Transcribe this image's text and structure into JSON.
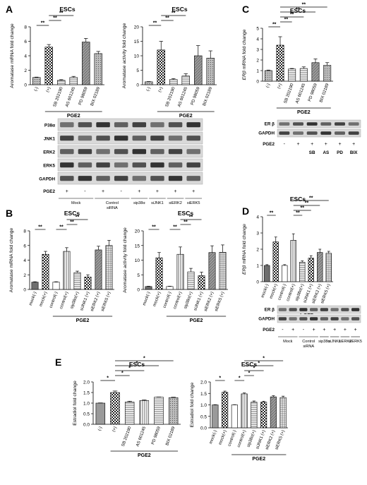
{
  "figure": {
    "panels": [
      {
        "letter": "A"
      },
      {
        "letter": "B"
      },
      {
        "letter": "C"
      },
      {
        "letter": "D"
      },
      {
        "letter": "E"
      }
    ]
  },
  "chart_data": [
    {
      "id": "A1",
      "panel": "A",
      "type": "bar",
      "title": "ESCs",
      "ylabel": "Aromatase mRNA fold change",
      "ylabel_italic_prefix": "",
      "xgroup_label": "PGE2",
      "ylim": [
        0,
        8
      ],
      "yticks": [
        0,
        2,
        4,
        6,
        8
      ],
      "categories": [
        "(-)",
        "(+)",
        "SB 202190",
        "AS 601245",
        "PD 98059",
        "BIX 02189"
      ],
      "values": [
        1.0,
        5.2,
        0.6,
        1.0,
        5.9,
        4.3
      ],
      "errors": [
        0.05,
        0.35,
        0.1,
        0.15,
        0.5,
        0.3
      ],
      "patterns": [
        "dots",
        "check",
        "hlines",
        "hlines",
        "diag",
        "dots"
      ],
      "xlabel_group_range": [
        1,
        5
      ],
      "brackets": [
        {
          "from": 0,
          "to": 1,
          "label": "**",
          "level": 0
        },
        {
          "from": 1,
          "to": 2,
          "label": "**",
          "level": 1
        },
        {
          "from": 1,
          "to": 3,
          "label": "**",
          "level": 2
        }
      ]
    },
    {
      "id": "A2",
      "panel": "A",
      "type": "bar",
      "title": "ESCs",
      "ylabel": "Aromatase activity fold change",
      "xgroup_label": "PGE2",
      "ylim": [
        0,
        20
      ],
      "yticks": [
        0,
        5,
        10,
        15,
        20
      ],
      "categories": [
        "(-)",
        "(+)",
        "SB 202190",
        "AS 601245",
        "PD 98059",
        "BIX 02189"
      ],
      "values": [
        1.0,
        12.0,
        1.8,
        3.0,
        10.0,
        9.2
      ],
      "errors": [
        0.1,
        3.0,
        0.3,
        0.8,
        3.5,
        2.5
      ],
      "patterns": [
        "dots",
        "check",
        "hlines",
        "hlines",
        "diag",
        "dots"
      ],
      "xlabel_group_range": [
        1,
        5
      ],
      "brackets": [
        {
          "from": 0,
          "to": 1,
          "label": "**",
          "level": 0
        },
        {
          "from": 1,
          "to": 2,
          "label": "**",
          "level": 1
        },
        {
          "from": 1,
          "to": 3,
          "label": "**",
          "level": 2
        }
      ]
    },
    {
      "id": "C1",
      "panel": "C",
      "type": "bar",
      "title": "ESCs",
      "ylabel": "ERβ mRNA fold change",
      "ylabel_italic_prefix": "ERβ",
      "xgroup_label": "PGE2",
      "ylim": [
        0,
        5
      ],
      "yticks": [
        0,
        1,
        2,
        3,
        4,
        5
      ],
      "categories": [
        "(-)",
        "(+)",
        "SB 202190",
        "AS 601245",
        "PD 98059",
        "BIX 02189"
      ],
      "values": [
        1.0,
        3.4,
        1.15,
        1.2,
        1.75,
        1.5
      ],
      "errors": [
        0.05,
        0.8,
        0.05,
        0.15,
        0.35,
        0.25
      ],
      "patterns": [
        "dots",
        "check",
        "hlines",
        "hlines",
        "diag",
        "dots"
      ],
      "xlabel_group_range": [
        1,
        5
      ],
      "brackets": [
        {
          "from": 0,
          "to": 1,
          "label": "**",
          "level": 0
        },
        {
          "from": 1,
          "to": 2,
          "label": "**",
          "level": 1
        },
        {
          "from": 1,
          "to": 3,
          "label": "**",
          "level": 2
        },
        {
          "from": 1,
          "to": 4,
          "label": "**",
          "level": 3
        },
        {
          "from": 1,
          "to": 5,
          "label": "**",
          "level": 4
        }
      ]
    },
    {
      "id": "B1",
      "panel": "B",
      "type": "bar",
      "title": "ESCs",
      "ylabel": "Aromatase mRNA fold change",
      "xgroup_label": "PGE2",
      "ylim": [
        0,
        8
      ],
      "yticks": [
        0,
        2,
        4,
        6,
        8
      ],
      "categories": [
        "mock(-)",
        "mock(+)",
        "control(-)",
        "control(+)",
        "sip38α(+)",
        "siJNK1 (+)",
        "siERK2 (+)",
        "siERK5 (+)"
      ],
      "values": [
        1.0,
        4.8,
        1.0,
        5.2,
        2.3,
        1.7,
        5.4,
        6.0
      ],
      "errors": [
        0.05,
        0.4,
        0.05,
        0.5,
        0.2,
        0.3,
        0.5,
        0.7
      ],
      "patterns": [
        "dark",
        "check",
        "white",
        "vlines",
        "hlines",
        "check",
        "diag",
        "grid"
      ],
      "xlabel_group_range": [
        2,
        7
      ],
      "brackets": [
        {
          "from": 0,
          "to": 1,
          "label": "**",
          "level": 0
        },
        {
          "from": 2,
          "to": 3,
          "label": "**",
          "level": 0
        },
        {
          "from": 3,
          "to": 4,
          "label": "**",
          "level": 1
        },
        {
          "from": 3,
          "to": 5,
          "label": "**",
          "level": 2
        }
      ]
    },
    {
      "id": "B2",
      "panel": "B",
      "type": "bar",
      "title": "ESCs",
      "ylabel": "Aromatase activity fold change",
      "xgroup_label": "PGE2",
      "ylim": [
        0,
        20
      ],
      "yticks": [
        0,
        5,
        10,
        15,
        20
      ],
      "categories": [
        "mock(-)",
        "mock(+)",
        "control(-)",
        "control(+)",
        "sip38α(+)",
        "siJNK1 (+)",
        "siERK2 (+)",
        "siERK5 (+)"
      ],
      "values": [
        1.0,
        10.8,
        1.0,
        12.0,
        6.0,
        4.7,
        12.6,
        12.7
      ],
      "errors": [
        0.1,
        1.8,
        0.1,
        2.5,
        1.2,
        1.2,
        2.3,
        2.5
      ],
      "patterns": [
        "dark",
        "check",
        "white",
        "vlines",
        "hlines",
        "check",
        "diag",
        "grid"
      ],
      "xlabel_group_range": [
        2,
        7
      ],
      "brackets": [
        {
          "from": 0,
          "to": 1,
          "label": "**",
          "level": 0
        },
        {
          "from": 2,
          "to": 3,
          "label": "**",
          "level": 0
        },
        {
          "from": 3,
          "to": 4,
          "label": "**",
          "level": 1
        },
        {
          "from": 3,
          "to": 5,
          "label": "**",
          "level": 2
        }
      ]
    },
    {
      "id": "D1",
      "panel": "D",
      "type": "bar",
      "title": "ESCs",
      "ylabel": "ERβ mRNA fold change",
      "ylabel_italic_prefix": "ERβ",
      "xgroup_label": "PGE2",
      "ylim": [
        0,
        4
      ],
      "yticks": [
        0,
        1,
        2,
        3,
        4
      ],
      "categories": [
        "mock(-)",
        "mock(+)",
        "control(-)",
        "control(+)",
        "sip38α(+)",
        "siJNK1 (+)",
        "siERK2 (+)",
        "siERK5 (+)"
      ],
      "values": [
        1.0,
        2.45,
        1.0,
        2.55,
        1.2,
        1.45,
        1.8,
        1.75
      ],
      "errors": [
        0.05,
        0.3,
        0.05,
        0.4,
        0.08,
        0.15,
        0.2,
        0.12
      ],
      "patterns": [
        "dark",
        "check",
        "white",
        "vlines",
        "hlines",
        "check",
        "diag",
        "grid"
      ],
      "xlabel_group_range": [
        2,
        7
      ],
      "brackets": [
        {
          "from": 0,
          "to": 1,
          "label": "**",
          "level": 0
        },
        {
          "from": 3,
          "to": 4,
          "label": "**",
          "level": 0
        },
        {
          "from": 3,
          "to": 5,
          "label": "**",
          "level": 1
        },
        {
          "from": 3,
          "to": 6,
          "label": "**",
          "level": 2
        },
        {
          "from": 3,
          "to": 7,
          "label": "**",
          "level": 3
        }
      ]
    },
    {
      "id": "E1",
      "panel": "E",
      "type": "bar",
      "title": "ESCs",
      "ylabel": "Estradiol fold change",
      "xgroup_label": "PGE2",
      "ylim": [
        0,
        2.0
      ],
      "yticks": [
        0.0,
        0.5,
        1.0,
        1.5,
        2.0
      ],
      "categories": [
        "(-)",
        "(+)",
        "SB 202190",
        "AS 601245",
        "PD 98059",
        "BIX 02189"
      ],
      "values": [
        1.0,
        1.5,
        1.05,
        1.12,
        1.28,
        1.26
      ],
      "errors": [
        0.01,
        0.07,
        0.04,
        0.03,
        0.01,
        0.02
      ],
      "patterns": [
        "gray",
        "check",
        "hlines",
        "vlines",
        "hlines",
        "dots"
      ],
      "xlabel_group_range": [
        1,
        5
      ],
      "brackets": [
        {
          "from": 0,
          "to": 1,
          "label": "*",
          "level": 0
        },
        {
          "from": 1,
          "to": 2,
          "label": "*",
          "level": 1
        },
        {
          "from": 1,
          "to": 3,
          "label": "*",
          "level": 2
        },
        {
          "from": 1,
          "to": 4,
          "label": "*",
          "level": 3
        },
        {
          "from": 1,
          "to": 5,
          "label": "*",
          "level": 4
        }
      ]
    },
    {
      "id": "E2",
      "panel": "E",
      "type": "bar",
      "title": "ESCs",
      "ylabel": "Estradiol fold change",
      "xgroup_label": "PGE2",
      "ylim": [
        0,
        2.0
      ],
      "yticks": [
        0.0,
        0.5,
        1.0,
        1.5,
        2.0
      ],
      "categories": [
        "mock(-)",
        "mock(+)",
        "control(-)",
        "control(+)",
        "sip38α(+)",
        "siJNK1 (+)",
        "siERK2 (+)",
        "siERK5 (+)"
      ],
      "values": [
        1.0,
        1.55,
        1.0,
        1.48,
        1.12,
        1.12,
        1.35,
        1.32
      ],
      "errors": [
        0.01,
        0.05,
        0.01,
        0.04,
        0.05,
        0.04,
        0.05,
        0.06
      ],
      "patterns": [
        "gray",
        "check",
        "white",
        "vlines",
        "hlines",
        "check",
        "diag",
        "grid"
      ],
      "xlabel_group_range": [
        2,
        7
      ],
      "brackets": [
        {
          "from": 0,
          "to": 1,
          "label": "*",
          "level": 0
        },
        {
          "from": 2,
          "to": 3,
          "label": "*",
          "level": 0
        },
        {
          "from": 3,
          "to": 4,
          "label": "*",
          "level": 1
        },
        {
          "from": 3,
          "to": 5,
          "label": "*",
          "level": 2
        },
        {
          "from": 3,
          "to": 6,
          "label": "*",
          "level": 3
        },
        {
          "from": 3,
          "to": 7,
          "label": "*",
          "level": 4
        }
      ]
    }
  ],
  "blots": [
    {
      "id": "A-blot",
      "panel": "A",
      "rows": [
        "P38α",
        "JNK1",
        "ERK2",
        "ERK5",
        "GAPDH"
      ],
      "pge2_label": "PGE2",
      "pge2_signs": [
        "+",
        "-",
        "+",
        "-",
        "+",
        "+",
        "+",
        "+"
      ],
      "groups": [
        {
          "label": "Mock",
          "lanes": [
            0,
            1
          ]
        },
        {
          "label": "Control siRNA",
          "lanes": [
            2,
            3
          ]
        },
        {
          "label": "sip38α",
          "lanes": [
            4,
            4
          ]
        },
        {
          "label": "siJNK1",
          "lanes": [
            5,
            5
          ]
        },
        {
          "label": "siERK2",
          "lanes": [
            6,
            6
          ]
        },
        {
          "label": "siERK5",
          "lanes": [
            7,
            7
          ]
        }
      ]
    },
    {
      "id": "C-blot",
      "panel": "C",
      "rows": [
        "ER β",
        "GAPDH"
      ],
      "pge2_label": "PGE2",
      "pge2_signs": [
        "-",
        "+",
        "+",
        "+",
        "+",
        "+"
      ],
      "lane_labels": [
        "",
        "",
        "SB",
        "AS",
        "PD",
        "BIX"
      ]
    },
    {
      "id": "D-blot",
      "panel": "D",
      "rows": [
        "ER β",
        "GAPDH"
      ],
      "pge2_label": "PGE2",
      "pge2_signs": [
        "-",
        "+",
        "-",
        "+",
        "+",
        "+",
        "+",
        "+"
      ],
      "groups": [
        {
          "label": "Mock",
          "lanes": [
            0,
            1
          ]
        },
        {
          "label": "Control siRNA",
          "lanes": [
            2,
            3
          ]
        },
        {
          "label": "sip38α",
          "lanes": [
            4,
            4
          ]
        },
        {
          "label": "siJNK1",
          "lanes": [
            5,
            5
          ]
        },
        {
          "label": "siERK2",
          "lanes": [
            6,
            6
          ]
        },
        {
          "label": "siERK5",
          "lanes": [
            7,
            7
          ]
        }
      ]
    }
  ],
  "colors": {
    "axis": "#000000",
    "bar_fill_gray": "#9a9a9a",
    "bar_dark": "#6e6e6e",
    "blot_bg": "#d9d9d9",
    "band": "#1a1a1a"
  }
}
